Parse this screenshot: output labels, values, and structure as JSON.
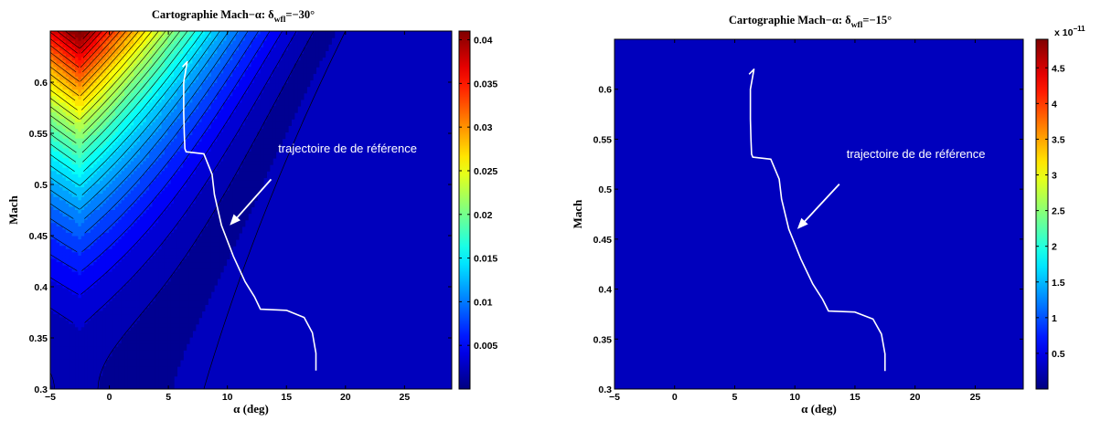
{
  "chart_data": [
    {
      "type": "contour",
      "title_prefix": "Cartographie Mach−α: δ",
      "title_sub": "wfl",
      "title_suffix": "=−30°",
      "xlabel": "α (deg)",
      "ylabel": "Mach",
      "xlim": [
        -5,
        29
      ],
      "ylim": [
        0.3,
        0.65
      ],
      "xticks": [
        -5,
        0,
        5,
        10,
        15,
        20,
        25
      ],
      "xtick_labels": [
        "−5",
        "0",
        "5",
        "10",
        "15",
        "20",
        "25"
      ],
      "yticks": [
        0.3,
        0.35,
        0.4,
        0.45,
        0.5,
        0.55,
        0.6
      ],
      "ytick_labels": [
        "0.3",
        "0.35",
        "0.4",
        "0.45",
        "0.5",
        "0.55",
        "0.6"
      ],
      "colorbar": {
        "min": 0,
        "max": 0.041,
        "ticks": [
          0.005,
          0.01,
          0.015,
          0.02,
          0.025,
          0.03,
          0.035,
          0.04
        ],
        "tick_labels": [
          "0.005",
          "0.01",
          "0.015",
          "0.02",
          "0.025",
          "0.03",
          "0.035",
          "0.04"
        ],
        "exponent": ""
      },
      "field": "varying",
      "annotation": "trajectoire de de référence",
      "trajectory": {
        "alpha": [
          6.2,
          6.6,
          6.3,
          6.3,
          6.35,
          6.4,
          6.5,
          8.0,
          8.7,
          8.9,
          9.5,
          10.5,
          11.5,
          12.3,
          12.8,
          15.0,
          16.5,
          17.2,
          17.5,
          17.5
        ],
        "mach": [
          0.615,
          0.62,
          0.6,
          0.57,
          0.55,
          0.535,
          0.532,
          0.53,
          0.51,
          0.49,
          0.46,
          0.43,
          0.405,
          0.39,
          0.378,
          0.377,
          0.37,
          0.355,
          0.335,
          0.318
        ]
      }
    },
    {
      "type": "contour",
      "title_prefix": "Cartographie Mach−α: δ",
      "title_sub": "wfl",
      "title_suffix": "=−15°",
      "xlabel": "α (deg)",
      "ylabel": "Mach",
      "xlim": [
        -5,
        29
      ],
      "ylim": [
        0.3,
        0.65
      ],
      "xticks": [
        -5,
        0,
        5,
        10,
        15,
        20,
        25
      ],
      "xtick_labels": [
        "−5",
        "0",
        "5",
        "10",
        "15",
        "20",
        "25"
      ],
      "yticks": [
        0.3,
        0.35,
        0.4,
        0.45,
        0.5,
        0.55,
        0.6
      ],
      "ytick_labels": [
        "0.3",
        "0.35",
        "0.4",
        "0.45",
        "0.5",
        "0.55",
        "0.6"
      ],
      "colorbar": {
        "min": 0,
        "max": 4.9,
        "ticks": [
          0.5,
          1,
          1.5,
          2,
          2.5,
          3,
          3.5,
          4,
          4.5
        ],
        "tick_labels": [
          "0.5",
          "1",
          "1.5",
          "2",
          "2.5",
          "3",
          "3.5",
          "4",
          "4.5"
        ],
        "exponent": "x 10",
        "exponent_power": "−11"
      },
      "field": "uniform",
      "annotation": "trajectoire de de référence",
      "trajectory": {
        "alpha": [
          6.2,
          6.6,
          6.3,
          6.3,
          6.35,
          6.4,
          6.5,
          8.0,
          8.7,
          8.9,
          9.5,
          10.5,
          11.5,
          12.3,
          12.8,
          15.0,
          16.5,
          17.2,
          17.5,
          17.5
        ],
        "mach": [
          0.615,
          0.62,
          0.6,
          0.57,
          0.55,
          0.535,
          0.532,
          0.53,
          0.51,
          0.49,
          0.46,
          0.43,
          0.405,
          0.39,
          0.378,
          0.377,
          0.37,
          0.355,
          0.335,
          0.318
        ]
      }
    }
  ]
}
